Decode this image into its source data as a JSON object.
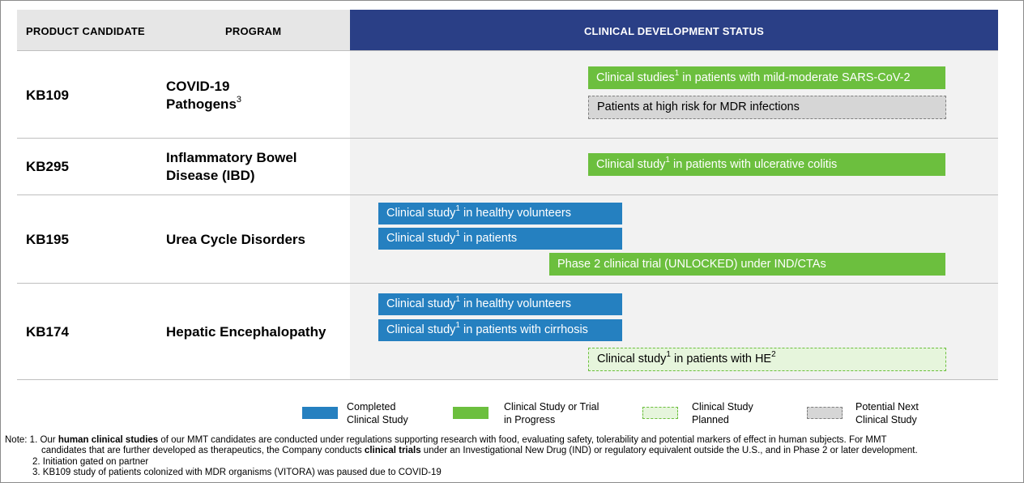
{
  "header": {
    "product_candidate": "PRODUCT CANDIDATE",
    "program": "PROGRAM",
    "clinical_status": "CLINICAL DEVELOPMENT STATUS"
  },
  "rows": [
    {
      "candidate": "KB109",
      "program_line1": "COVID-19",
      "program_line2": "Pathogens",
      "program_sup": "3",
      "bars": [
        {
          "type": "in_progress",
          "pre": "Clinical studies",
          "sup": "1",
          "post": " in patients with mild-moderate SARS-CoV-2"
        },
        {
          "type": "potential_next",
          "text": "Patients at high risk for MDR infections"
        }
      ]
    },
    {
      "candidate": "KB295",
      "program_line1": "Inflammatory Bowel",
      "program_line2": "Disease (IBD)",
      "bars": [
        {
          "type": "in_progress",
          "pre": "Clinical study",
          "sup": "1",
          "post": " in patients with ulcerative colitis"
        }
      ]
    },
    {
      "candidate": "KB195",
      "program_line1": "Urea Cycle Disorders",
      "bars": [
        {
          "type": "completed",
          "pre": "Clinical study",
          "sup": "1",
          "post": " in healthy volunteers"
        },
        {
          "type": "completed",
          "pre": "Clinical study",
          "sup": "1",
          "post": " in patients"
        },
        {
          "type": "in_progress",
          "text": "Phase 2 clinical trial (UNLOCKED) under IND/CTAs"
        }
      ]
    },
    {
      "candidate": "KB174",
      "program_line1": "Hepatic Encephalopathy",
      "bars": [
        {
          "type": "completed",
          "pre": "Clinical study",
          "sup": "1",
          "post": " in healthy volunteers"
        },
        {
          "type": "completed",
          "pre": "Clinical study",
          "sup": "1",
          "post": " in patients with cirrhosis"
        },
        {
          "type": "planned",
          "pre": "Clinical study",
          "sup": "1",
          "post": " in patients with HE",
          "sup2": "2"
        }
      ]
    }
  ],
  "legend": [
    {
      "key": "completed",
      "line1": "Completed",
      "line2": "Clinical Study",
      "color": "#2580c0"
    },
    {
      "key": "in_progress",
      "line1": "Clinical Study or Trial",
      "line2": "in Progress",
      "color": "#6cbf3e"
    },
    {
      "key": "planned",
      "line1": "Clinical Study",
      "line2": "Planned",
      "color": "#e6f5dc"
    },
    {
      "key": "potential_next",
      "line1": "Potential Next",
      "line2": "Clinical Study",
      "color": "#d6d6d6"
    }
  ],
  "notes": {
    "n1_prefix": "Note: 1. Our ",
    "n1_bold1": "human clinical studies",
    "n1_mid": " of our MMT candidates are conducted under regulations supporting research with food, evaluating safety, tolerability and potential markers of effect in human subjects. For MMT",
    "n1_line2_pre": "candidates that are further developed as therapeutics, the Company conducts ",
    "n1_bold2": "clinical trials",
    "n1_line2_post": " under an Investigational New Drug (IND) or regulatory equivalent outside the U.S., and in Phase 2 or later development.",
    "n2": "2.  Initiation gated on partner",
    "n3": "3.  KB109 study of patients colonized with MDR organisms (VITORA) was paused due to COVID-19"
  },
  "colors": {
    "header_blue": "#2a3f86",
    "completed": "#2580c0",
    "in_progress": "#6cbf3e",
    "planned": "#e6f5dc",
    "potential_next": "#d6d6d6"
  }
}
